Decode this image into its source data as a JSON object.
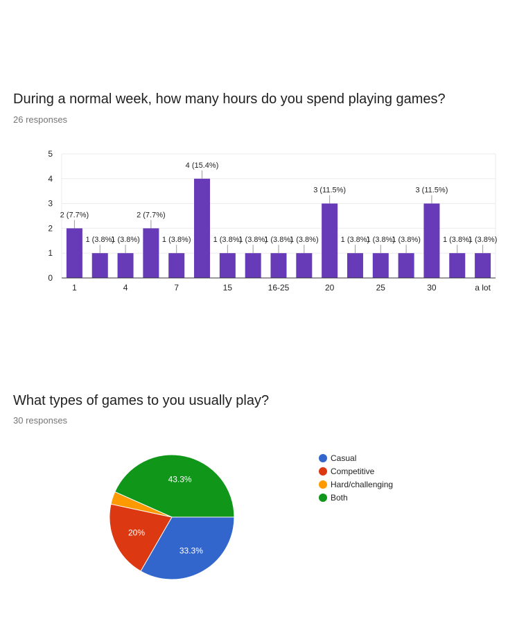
{
  "questions": [
    {
      "title": "During a normal week, how many hours do you spend playing games?",
      "responses": "26 responses"
    },
    {
      "title": "What types of games to you usually play?",
      "responses": "30 responses"
    }
  ],
  "chart_data": [
    {
      "type": "bar",
      "title": "During a normal week, how many hours do you spend playing games?",
      "categories": [
        "1",
        "",
        "4",
        "",
        "7",
        "",
        "15",
        "",
        "16-25",
        "",
        "20",
        "",
        "25",
        "",
        "30",
        "",
        "a lot"
      ],
      "values": [
        2,
        1,
        1,
        2,
        1,
        4,
        1,
        1,
        1,
        1,
        3,
        1,
        1,
        1,
        3,
        1,
        1
      ],
      "data_labels": [
        "2 (7.7%)",
        "1 (3.8%)",
        "1 (3.8%)",
        "2 (7.7%)",
        "1 (3.8%)",
        "4 (15.4%)",
        "1 (3.8%)",
        "1 (3.8%)",
        "1 (3.8%)",
        "1 (3.8%)",
        "3 (11.5%)",
        "1 (3.8%)",
        "1 (3.8%)",
        "1 (3.8%)",
        "3 (11.5%)",
        "1 (3.8%)",
        "1 (3.8%)"
      ],
      "ylim": [
        0,
        5
      ],
      "yticks": [
        0,
        1,
        2,
        3,
        4,
        5
      ],
      "grid": true,
      "color": "#673ab7"
    },
    {
      "type": "pie",
      "title": "What types of games to you usually play?",
      "labels": [
        "Casual",
        "Competitive",
        "Hard/challenging",
        "Both"
      ],
      "values": [
        33.3,
        20,
        3.3,
        43.3
      ],
      "colors": [
        "#3366cc",
        "#dc3912",
        "#ff9900",
        "#109618"
      ],
      "slice_labels": [
        "33.3%",
        "20%",
        "",
        "43.3%"
      ],
      "legend_position": "right"
    }
  ]
}
